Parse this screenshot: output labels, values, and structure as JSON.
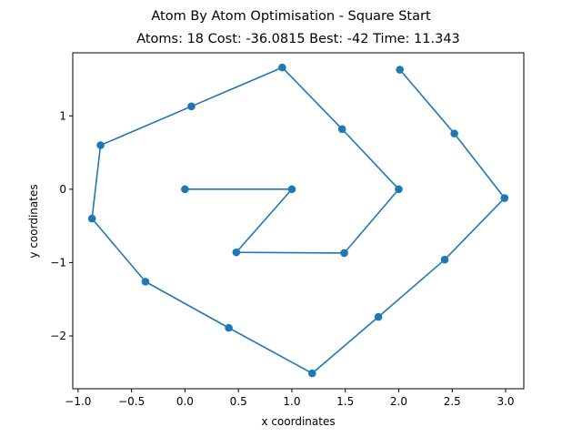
{
  "chart_data": {
    "type": "line",
    "title": "Atom By Atom Optimisation - Square Start",
    "subtitle": "Atoms: 18 Cost: -36.0815 Best: -42 Time: 11.343",
    "xlabel": "x coordinates",
    "ylabel": "y coordinates",
    "xlim": [
      -1.05,
      3.17
    ],
    "ylim": [
      -2.72,
      1.86
    ],
    "xticks": [
      -1.0,
      -0.5,
      0.0,
      0.5,
      1.0,
      1.5,
      2.0,
      2.5,
      3.0
    ],
    "xtick_labels": [
      "−1.0",
      "−0.5",
      "0.0",
      "0.5",
      "1.0",
      "1.5",
      "2.0",
      "2.5",
      "3.0"
    ],
    "yticks": [
      -2,
      -1,
      0,
      1
    ],
    "ytick_labels": [
      "−2",
      "−1",
      "0",
      "1"
    ],
    "grid": false,
    "series": [
      {
        "name": "atoms",
        "color": "#1f77b4",
        "x": [
          0.0,
          1.0,
          0.48,
          1.49,
          2.0,
          1.47,
          0.91,
          0.06,
          -0.79,
          -0.87,
          -0.37,
          0.41,
          1.19,
          1.81,
          2.43,
          2.99,
          2.52,
          2.01
        ],
        "y": [
          0.0,
          0.0,
          -0.86,
          -0.87,
          0.0,
          0.82,
          1.66,
          1.13,
          0.6,
          -0.4,
          -1.26,
          -1.89,
          -2.51,
          -1.74,
          -0.96,
          -0.12,
          0.76,
          1.63
        ]
      }
    ]
  }
}
